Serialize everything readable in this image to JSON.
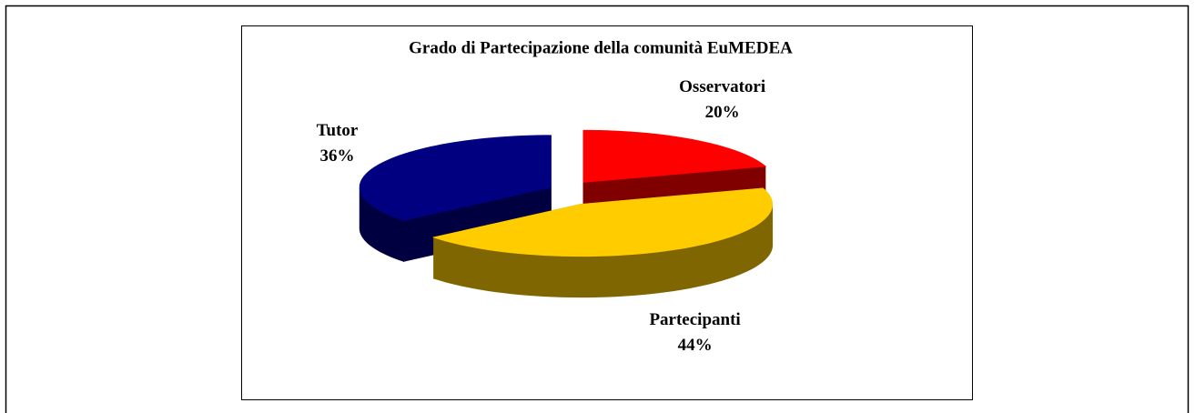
{
  "chart_data": {
    "type": "pie",
    "title": "Grado di Partecipazione della comunità EuMEDEA",
    "categories": [
      "Osservatori",
      "Partecipanti",
      "Tutor"
    ],
    "values": [
      20,
      44,
      36
    ],
    "value_labels": [
      "20%",
      "44%",
      "36%"
    ],
    "colors": [
      "#ff0000",
      "#ffcc00",
      "#000080"
    ],
    "side_colors": [
      "#800000",
      "#806600",
      "#000040"
    ]
  }
}
